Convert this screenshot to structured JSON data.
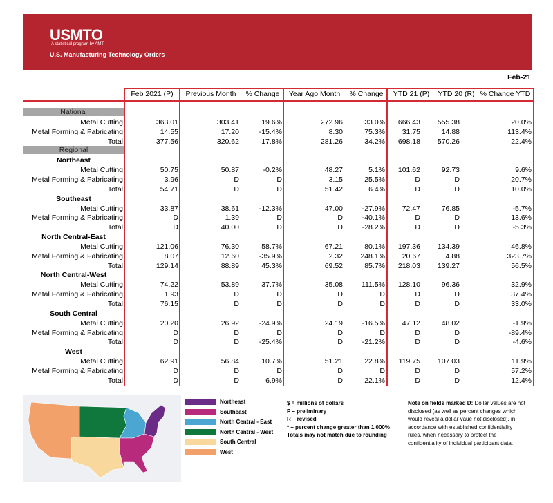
{
  "header": {
    "logo": "USMTO",
    "tagline": "A statistical program by AMT",
    "title": "U.S. Manufacturing Technology Orders"
  },
  "date": "Feb-21",
  "table": {
    "columns": [
      "Feb 2021 (P)",
      "Previous Month",
      "% Change",
      "Year Ago Month",
      "% Change",
      "YTD 21 (P)",
      "YTD 20 (R)",
      "% Change YTD"
    ],
    "national": {
      "label": "National",
      "rows": [
        {
          "label": "Metal Cutting",
          "cells": [
            "363.01",
            "303.41",
            "19.6%",
            "272.96",
            "33.0%",
            "666.43",
            "555.38",
            "20.0%"
          ]
        },
        {
          "label": "Metal Forming & Fabricating",
          "cells": [
            "14.55",
            "17.20",
            "-15.4%",
            "8.30",
            "75.3%",
            "31.75",
            "14.88",
            "113.4%"
          ]
        },
        {
          "label": "Total",
          "cells": [
            "377.56",
            "320.62",
            "17.8%",
            "281.26",
            "34.2%",
            "698.18",
            "570.26",
            "22.4%"
          ]
        }
      ]
    },
    "regional": {
      "label": "Regional",
      "regions": [
        {
          "name": "Northeast",
          "rows": [
            {
              "label": "Metal Cutting",
              "cells": [
                "50.75",
                "50.87",
                "-0.2%",
                "48.27",
                "5.1%",
                "101.62",
                "92.73",
                "9.6%"
              ]
            },
            {
              "label": "Metal Forming & Fabricating",
              "cells": [
                "3.96",
                "D",
                "D",
                "3.15",
                "25.5%",
                "D",
                "D",
                "20.7%"
              ]
            },
            {
              "label": "Total",
              "cells": [
                "54.71",
                "D",
                "D",
                "51.42",
                "6.4%",
                "D",
                "D",
                "10.0%"
              ]
            }
          ]
        },
        {
          "name": "Southeast",
          "rows": [
            {
              "label": "Metal Cutting",
              "cells": [
                "33.87",
                "38.61",
                "-12.3%",
                "47.00",
                "-27.9%",
                "72.47",
                "76.85",
                "-5.7%"
              ]
            },
            {
              "label": "Metal Forming & Fabricating",
              "cells": [
                "D",
                "1.39",
                "D",
                "D",
                "-40.1%",
                "D",
                "D",
                "13.6%"
              ]
            },
            {
              "label": "Total",
              "cells": [
                "D",
                "40.00",
                "D",
                "D",
                "-28.2%",
                "D",
                "D",
                "-5.3%"
              ]
            }
          ]
        },
        {
          "name": "North Central-East",
          "rows": [
            {
              "label": "Metal Cutting",
              "cells": [
                "121.06",
                "76.30",
                "58.7%",
                "67.21",
                "80.1%",
                "197.36",
                "134.39",
                "46.8%"
              ]
            },
            {
              "label": "Metal Forming & Fabricating",
              "cells": [
                "8.07",
                "12.60",
                "-35.9%",
                "2.32",
                "248.1%",
                "20.67",
                "4.88",
                "323.7%"
              ]
            },
            {
              "label": "Total",
              "cells": [
                "129.14",
                "88.89",
                "45.3%",
                "69.52",
                "85.7%",
                "218.03",
                "139.27",
                "56.5%"
              ]
            }
          ]
        },
        {
          "name": "North Central-West",
          "rows": [
            {
              "label": "Metal Cutting",
              "cells": [
                "74.22",
                "53.89",
                "37.7%",
                "35.08",
                "111.5%",
                "128.10",
                "96.36",
                "32.9%"
              ]
            },
            {
              "label": "Metal Forming & Fabricating",
              "cells": [
                "1.93",
                "D",
                "D",
                "D",
                "D",
                "D",
                "D",
                "37.4%"
              ]
            },
            {
              "label": "Total",
              "cells": [
                "76.15",
                "D",
                "D",
                "D",
                "D",
                "D",
                "D",
                "33.0%"
              ]
            }
          ]
        },
        {
          "name": "South Central",
          "rows": [
            {
              "label": "Metal Cutting",
              "cells": [
                "20.20",
                "26.92",
                "-24.9%",
                "24.19",
                "-16.5%",
                "47.12",
                "48.02",
                "-1.9%"
              ]
            },
            {
              "label": "Metal Forming & Fabricating",
              "cells": [
                "D",
                "D",
                "D",
                "D",
                "D",
                "D",
                "D",
                "-89.4%"
              ]
            },
            {
              "label": "Total",
              "cells": [
                "D",
                "D",
                "-25.4%",
                "D",
                "-21.2%",
                "D",
                "D",
                "-4.6%"
              ]
            }
          ]
        },
        {
          "name": "West",
          "rows": [
            {
              "label": "Metal Cutting",
              "cells": [
                "62.91",
                "56.84",
                "10.7%",
                "51.21",
                "22.8%",
                "119.75",
                "107.03",
                "11.9%"
              ]
            },
            {
              "label": "Metal Forming & Fabricating",
              "cells": [
                "D",
                "D",
                "D",
                "D",
                "D",
                "D",
                "D",
                "57.2%"
              ]
            },
            {
              "label": "Total",
              "cells": [
                "D",
                "D",
                "6.9%",
                "D",
                "22.1%",
                "D",
                "D",
                "12.4%"
              ]
            }
          ]
        }
      ]
    }
  },
  "legend": [
    {
      "label": "Northeast",
      "color": "#6a2c86"
    },
    {
      "label": "Southeast",
      "color": "#b72a7c"
    },
    {
      "label": "North Central - East",
      "color": "#4ba6d2"
    },
    {
      "label": "North Central - West",
      "color": "#10783c"
    },
    {
      "label": "South Central",
      "color": "#f8d89c"
    },
    {
      "label": "West",
      "color": "#f2a16b"
    }
  ],
  "notes": [
    "$ = millions of dollars",
    "P – preliminary",
    "R – revised",
    "* – percent change greater than 1,000%",
    "Totals may not match due to rounding"
  ],
  "disclosure": {
    "lead": "Note on fields marked D:",
    "lines": [
      " Dollar values are not",
      "disclosed (as well as percent changes which",
      "would reveal a dollar vaue not disclosed), in",
      "accordance with established confidentiality",
      "rules, when necessary to protect the",
      "confidentiality of individual participant data."
    ]
  }
}
